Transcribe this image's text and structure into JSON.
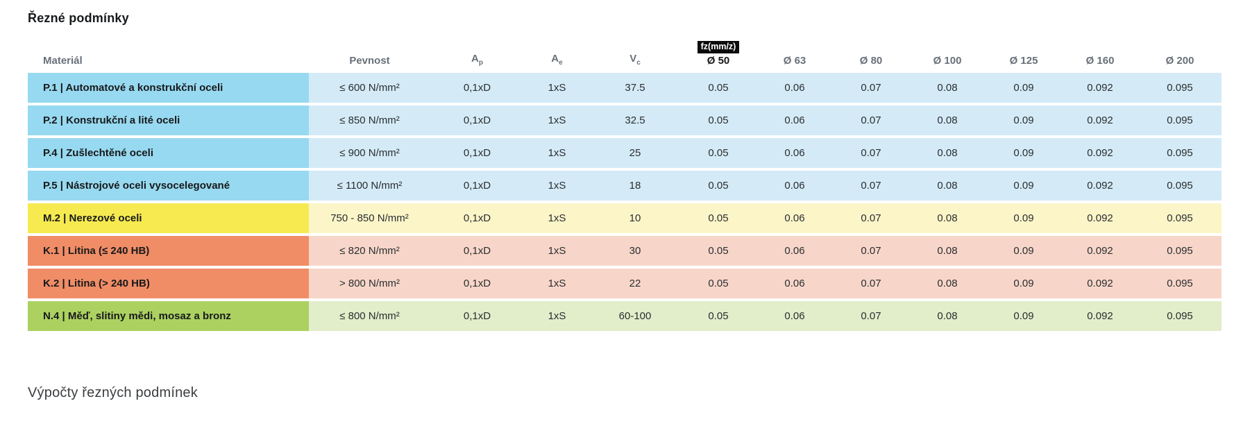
{
  "page": {
    "title": "Řezné podmínky",
    "footer_heading": "Výpočty řezných podmínek"
  },
  "table": {
    "fz_badge": "fz(mm/z)",
    "headers": {
      "material": "Materiál",
      "pevnost": "Pevnost",
      "ap_base": "A",
      "ap_sub": "p",
      "ae_base": "A",
      "ae_sub": "e",
      "vc_base": "V",
      "vc_sub": "c",
      "diameters": [
        "Ø 50",
        "Ø 63",
        "Ø 80",
        "Ø 100",
        "Ø 125",
        "Ø 160",
        "Ø 200"
      ]
    },
    "rows": [
      {
        "material": "P.1 | Automatové a konstrukční oceli",
        "pevnost": "≤ 600 N/mm²",
        "ap": "0,1xD",
        "ae": "1xS",
        "vc": "37.5",
        "fz": [
          "0.05",
          "0.06",
          "0.07",
          "0.08",
          "0.09",
          "0.092",
          "0.095"
        ],
        "color_strong": "#97d9f0",
        "color_light": "#d4ebf7"
      },
      {
        "material": "P.2 | Konstrukční a lité oceli",
        "pevnost": "≤ 850 N/mm²",
        "ap": "0,1xD",
        "ae": "1xS",
        "vc": "32.5",
        "fz": [
          "0.05",
          "0.06",
          "0.07",
          "0.08",
          "0.09",
          "0.092",
          "0.095"
        ],
        "color_strong": "#97d9f0",
        "color_light": "#d4ebf7"
      },
      {
        "material": "P.4 | Zušlechtěné oceli",
        "pevnost": "≤ 900 N/mm²",
        "ap": "0,1xD",
        "ae": "1xS",
        "vc": "25",
        "fz": [
          "0.05",
          "0.06",
          "0.07",
          "0.08",
          "0.09",
          "0.092",
          "0.095"
        ],
        "color_strong": "#97d9f0",
        "color_light": "#d4ebf7"
      },
      {
        "material": "P.5 | Nástrojové oceli vysocelegované",
        "pevnost": "≤ 1100 N/mm²",
        "ap": "0,1xD",
        "ae": "1xS",
        "vc": "18",
        "fz": [
          "0.05",
          "0.06",
          "0.07",
          "0.08",
          "0.09",
          "0.092",
          "0.095"
        ],
        "color_strong": "#97d9f0",
        "color_light": "#d4ebf7"
      },
      {
        "material": "M.2 | Nerezové oceli",
        "pevnost": "750 - 850 N/mm²",
        "ap": "0,1xD",
        "ae": "1xS",
        "vc": "10",
        "fz": [
          "0.05",
          "0.06",
          "0.07",
          "0.08",
          "0.09",
          "0.092",
          "0.095"
        ],
        "color_strong": "#f6ea50",
        "color_light": "#fbf5c8"
      },
      {
        "material": "K.1 | Litina (≤ 240 HB)",
        "pevnost": "≤ 820 N/mm²",
        "ap": "0,1xD",
        "ae": "1xS",
        "vc": "30",
        "fz": [
          "0.05",
          "0.06",
          "0.07",
          "0.08",
          "0.09",
          "0.092",
          "0.095"
        ],
        "color_strong": "#f08d66",
        "color_light": "#f7d6c9"
      },
      {
        "material": "K.2 | Litina (> 240 HB)",
        "pevnost": "> 800 N/mm²",
        "ap": "0,1xD",
        "ae": "1xS",
        "vc": "22",
        "fz": [
          "0.05",
          "0.06",
          "0.07",
          "0.08",
          "0.09",
          "0.092",
          "0.095"
        ],
        "color_strong": "#f08d66",
        "color_light": "#f7d6c9"
      },
      {
        "material": "N.4 | Měď, slitiny mědi, mosaz a bronz",
        "pevnost": "≤ 800 N/mm²",
        "ap": "0,1xD",
        "ae": "1xS",
        "vc": "60-100",
        "fz": [
          "0.05",
          "0.06",
          "0.07",
          "0.08",
          "0.09",
          "0.092",
          "0.095"
        ],
        "color_strong": "#acd161",
        "color_light": "#e2edca"
      }
    ]
  }
}
